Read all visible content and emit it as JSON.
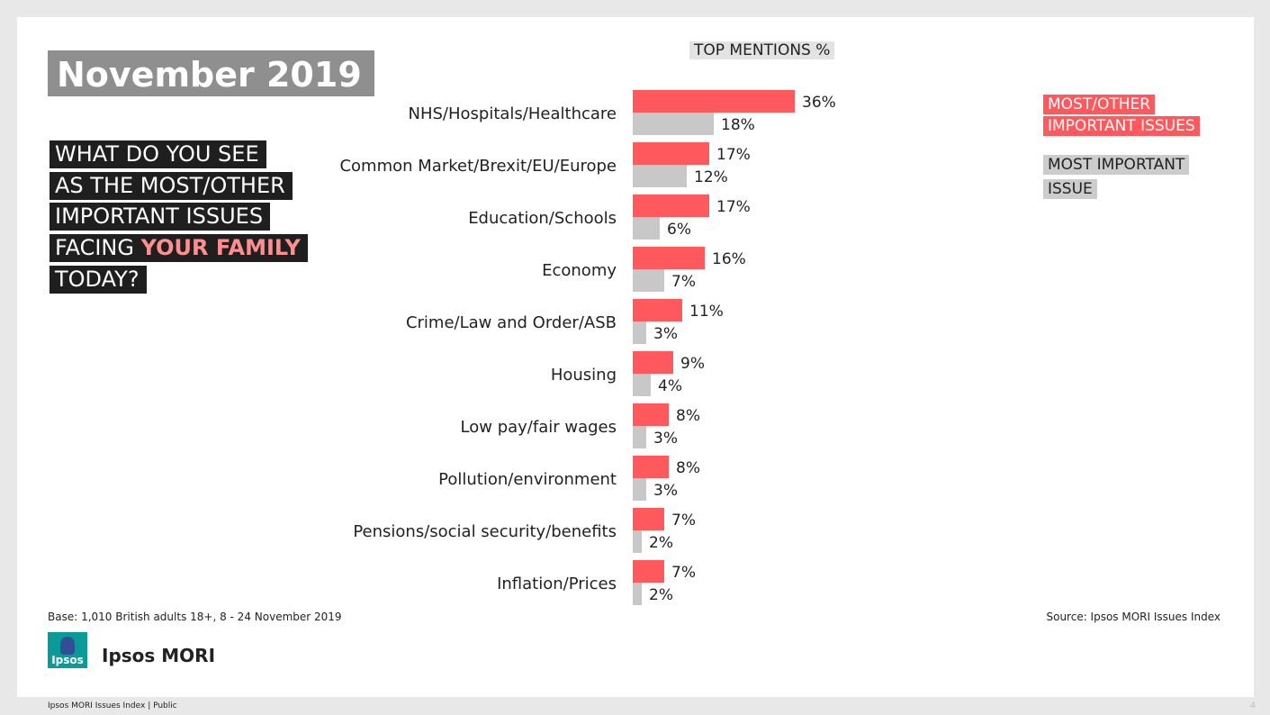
{
  "title": "November 2019",
  "question": {
    "lines": [
      "WHAT DO YOU SEE",
      "AS THE MOST/OTHER",
      "IMPORTANT ISSUES",
      "FACING ",
      "TODAY?"
    ],
    "highlight": "YOUR FAMILY"
  },
  "legend": {
    "red_line1": "MOST/OTHER",
    "red_line2": "IMPORTANT ISSUES",
    "grey_line1": "MOST IMPORTANT",
    "grey_line2": "ISSUE"
  },
  "colors": {
    "most_other": "#ff595e",
    "most_important": "#c8c8c8"
  },
  "chart_data": {
    "type": "bar",
    "orientation": "horizontal",
    "title": "TOP MENTIONS %",
    "categories": [
      "NHS/Hospitals/Healthcare",
      "Common Market/Brexit/EU/Europe",
      "Education/Schools",
      "Economy",
      "Crime/Law and Order/ASB",
      "Housing",
      "Low pay/fair wages",
      "Pollution/environment",
      "Pensions/social security/benefits",
      "Inflation/Prices"
    ],
    "series": [
      {
        "name": "MOST/OTHER IMPORTANT ISSUES",
        "color": "#ff595e",
        "values": [
          36,
          17,
          17,
          16,
          11,
          9,
          8,
          8,
          7,
          7
        ]
      },
      {
        "name": "MOST IMPORTANT ISSUE",
        "color": "#c8c8c8",
        "values": [
          18,
          12,
          6,
          7,
          3,
          4,
          3,
          3,
          2,
          2
        ]
      }
    ],
    "value_suffix": "%",
    "legend_position": "top-right",
    "grid": false
  },
  "base_note": "Base: 1,010 British adults 18+, 8 - 24 November 2019",
  "source_note": "Source: Ipsos MORI Issues Index",
  "logo_text": "Ipsos",
  "brand": "Ipsos MORI",
  "footer": "Ipsos MORI Issues Index | Public",
  "page_number": "4"
}
